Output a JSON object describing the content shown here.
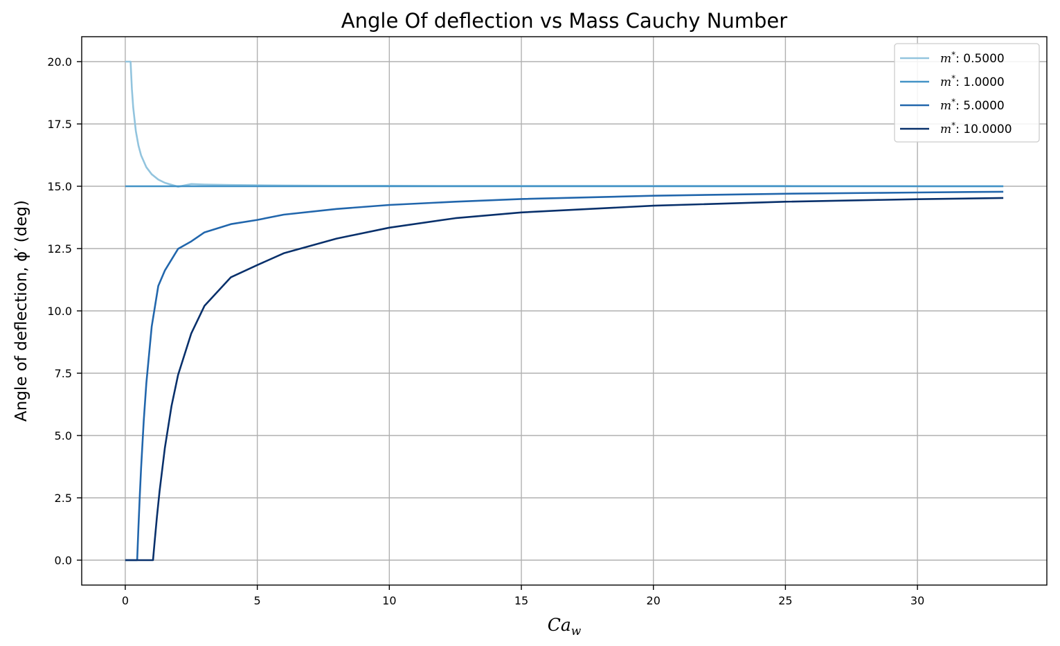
{
  "chart_data": {
    "type": "line",
    "title": "Angle Of deflection vs Mass Cauchy Number",
    "ylabel": "Angle of deflection, ϕ′ (deg)",
    "xlabel_main": "Ca",
    "xlabel_sub": "w",
    "xlim": [
      -1.65,
      34.9
    ],
    "ylim": [
      -1.0,
      21.0
    ],
    "xticks": [
      0,
      5,
      10,
      15,
      20,
      25,
      30
    ],
    "xtick_labels": [
      "0",
      "5",
      "10",
      "15",
      "20",
      "25",
      "30"
    ],
    "yticks": [
      0.0,
      2.5,
      5.0,
      7.5,
      10.0,
      12.5,
      15.0,
      17.5,
      20.0
    ],
    "ytick_labels": [
      "0.0",
      "2.5",
      "5.0",
      "7.5",
      "10.0",
      "12.5",
      "15.0",
      "17.5",
      "20.0"
    ],
    "grid": true,
    "legend_position": "top-right",
    "legend_prefix": "m",
    "legend_sup": "*",
    "series": [
      {
        "name": ": 0.5000",
        "color": "#92c4de",
        "x": [
          0.0,
          0.1,
          0.2,
          0.25,
          0.3,
          0.4,
          0.5,
          0.6,
          0.8,
          1.0,
          1.25,
          1.5,
          2.0,
          2.5,
          3.0,
          4.0,
          5.0,
          6.0,
          8.0,
          10.0,
          12.5,
          15.0,
          20.0,
          25.0,
          30.0,
          33.25
        ],
        "y": [
          20.0,
          20.0,
          20.0,
          18.9,
          18.16,
          17.21,
          16.63,
          16.24,
          15.76,
          15.48,
          15.27,
          15.14,
          14.98,
          15.09,
          15.07,
          15.05,
          15.04,
          15.03,
          15.02,
          15.02,
          15.01,
          15.01,
          15.01,
          15.01,
          15.0,
          15.0
        ]
      },
      {
        "name": ": 1.0000",
        "color": "#4292c6",
        "x": [
          0.0,
          33.25
        ],
        "y": [
          15.0,
          15.0
        ]
      },
      {
        "name": ": 5.0000",
        "color": "#2166ac",
        "x": [
          0.0,
          0.45,
          0.5,
          0.55,
          0.6,
          0.7,
          0.8,
          1.0,
          1.25,
          1.5,
          2.0,
          2.5,
          3.0,
          4.0,
          5.0,
          6.0,
          8.0,
          10.0,
          12.5,
          15.0,
          20.0,
          25.0,
          30.0,
          33.25
        ],
        "y": [
          0.0,
          0.0,
          1.35,
          2.58,
          3.7,
          5.59,
          7.11,
          9.37,
          11.0,
          11.62,
          12.49,
          12.79,
          13.15,
          13.48,
          13.65,
          13.86,
          14.09,
          14.25,
          14.38,
          14.49,
          14.62,
          14.7,
          14.75,
          14.78
        ]
      },
      {
        "name": ": 10.0000",
        "color": "#08306b",
        "x": [
          0.0,
          1.05,
          1.1,
          1.2,
          1.3,
          1.5,
          1.75,
          2.0,
          2.5,
          3.0,
          4.0,
          5.0,
          6.0,
          8.0,
          10.0,
          12.5,
          15.0,
          20.0,
          25.0,
          30.0,
          33.25
        ],
        "y": [
          0.0,
          0.0,
          0.6,
          1.75,
          2.77,
          4.5,
          6.18,
          7.43,
          9.1,
          10.2,
          11.35,
          11.84,
          12.31,
          12.9,
          13.34,
          13.72,
          13.95,
          14.22,
          14.38,
          14.48,
          14.53
        ]
      }
    ]
  }
}
